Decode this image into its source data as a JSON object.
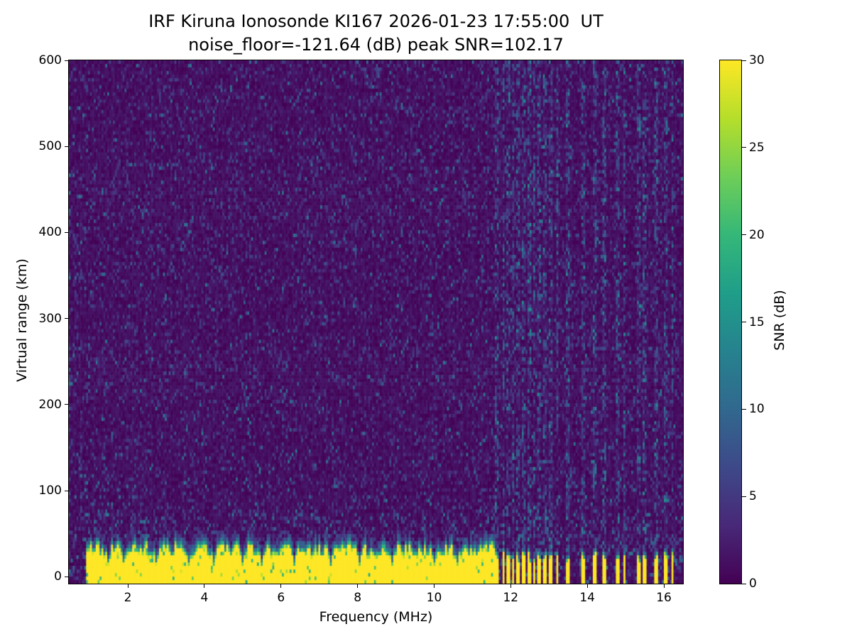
{
  "figure": {
    "title_line1": "IRF Kiruna Ionosonde KI167 2026-01-23 17:55:00  UT",
    "title_line2": "noise_floor=-121.64 (dB) peak SNR=102.17"
  },
  "chart_data": {
    "type": "heatmap",
    "station": "IRF Kiruna Ionosonde KI167",
    "timestamp_ut": "2026-01-23 17:55:00 UT",
    "noise_floor_db": -121.64,
    "peak_snr_db": 102.17,
    "colormap": "viridis",
    "colormap_stops": [
      "#440154",
      "#482878",
      "#3e4989",
      "#31688e",
      "#26828e",
      "#1f9e89",
      "#35b779",
      "#6ece58",
      "#b5de2b",
      "#fde725"
    ],
    "x_axis": {
      "label": "Frequency (MHz)",
      "range": [
        0.46,
        16.5
      ],
      "ticks": [
        2,
        4,
        6,
        8,
        10,
        12,
        14,
        16
      ]
    },
    "y_axis": {
      "label": "Virtual range (km)",
      "range": [
        -8,
        600
      ],
      "ticks": [
        0,
        100,
        200,
        300,
        400,
        500,
        600
      ]
    },
    "colorbar": {
      "label": "SNR (dB)",
      "range": [
        0,
        30
      ],
      "ticks": [
        0,
        5,
        10,
        15,
        20,
        25,
        30
      ]
    },
    "features": {
      "background_snr_db": [
        0,
        3
      ],
      "speckle_snr_db": [
        3,
        12
      ],
      "ground_echo_band": {
        "freq_start": 0.9,
        "freq_end": 11.62,
        "top_km_mean": 29,
        "top_km_jitter": 8,
        "snr_db": 30
      },
      "band_notches_mhz": [
        1.5,
        1.9,
        2.75,
        3.6,
        4.25,
        5.0,
        5.5,
        6.35,
        7.3,
        8.05,
        8.9,
        10.0,
        10.6
      ],
      "rfi_stripes_mhz": [
        11.64,
        11.81,
        11.94,
        12.07,
        12.2,
        12.35,
        12.49,
        12.62,
        12.75,
        12.9,
        13.05,
        13.22,
        13.5,
        13.9,
        14.2,
        14.45,
        14.79,
        14.98,
        15.35,
        15.5,
        15.81,
        16.05,
        16.22
      ]
    },
    "render": {
      "seed": 167,
      "ncols": 320,
      "nrows": 148
    }
  }
}
